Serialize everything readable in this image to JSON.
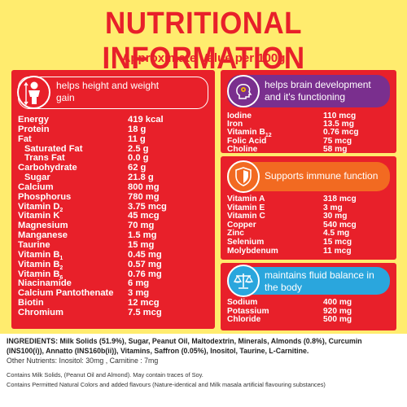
{
  "title": "NUTRITIONAL INFORMATION",
  "subtitle": "Approximate Value per 100g",
  "left_panel": {
    "header": "helps height and weight gain",
    "icon": "child-height-icon",
    "rows": [
      {
        "name": "Energy",
        "value": "419 kcal",
        "indent": false
      },
      {
        "name": "Protein",
        "value": "18 g",
        "indent": false
      },
      {
        "name": "Fat",
        "value": "11 g",
        "indent": false
      },
      {
        "name": "Saturated Fat",
        "value": "2.5 g",
        "indent": true
      },
      {
        "name": "Trans Fat",
        "value": "0.0 g",
        "indent": true
      },
      {
        "name": "Carbohydrate",
        "value": "62 g",
        "indent": false
      },
      {
        "name": "Sugar",
        "value": "21.8 g",
        "indent": true
      },
      {
        "name": "Calcium",
        "value": "800 mg",
        "indent": false
      },
      {
        "name": "Phosphorus",
        "value": "780 mg",
        "indent": false
      },
      {
        "name": "Vitamin D",
        "sub": "2",
        "value": "3.75 mcg",
        "indent": false
      },
      {
        "name": "Vitamin K",
        "value": "45 mcg",
        "indent": false
      },
      {
        "name": "Magnesium",
        "value": "70 mg",
        "indent": false
      },
      {
        "name": "Manganese",
        "value": "1.5 mg",
        "indent": false
      },
      {
        "name": "Taurine",
        "value": "15 mg",
        "indent": false
      },
      {
        "name": "Vitamin B",
        "sub": "1",
        "value": "0.45 mg",
        "indent": false
      },
      {
        "name": "Vitamin B",
        "sub": "2",
        "value": "0.57 mg",
        "indent": false
      },
      {
        "name": "Vitamin B",
        "sub": "6",
        "value": "0.76 mg",
        "indent": false
      },
      {
        "name": "Niacinamide",
        "value": "6 mg",
        "indent": false
      },
      {
        "name": "Calcium Pantothenate",
        "value": "3 mg",
        "indent": false
      },
      {
        "name": "Biotin",
        "value": "12 mcg",
        "indent": false
      },
      {
        "name": "Chromium",
        "value": "7.5 mcg",
        "indent": false
      }
    ]
  },
  "brain_panel": {
    "header": "helps brain development and it's functioning",
    "icon": "brain-head-icon",
    "rows": [
      {
        "name": "Iodine",
        "value": "110 mcg"
      },
      {
        "name": "Iron",
        "value": "13.5 mg"
      },
      {
        "name": "Vitamin B",
        "sub": "12",
        "value": "0.76 mcg"
      },
      {
        "name": "Folic Acid",
        "value": "75 mcg"
      },
      {
        "name": "Choline",
        "value": "58 mg"
      }
    ]
  },
  "immune_panel": {
    "header": "Supports immune function",
    "icon": "shield-icon",
    "rows": [
      {
        "name": "Vitamin A",
        "value": "318 mcg"
      },
      {
        "name": "Vitamin E",
        "value": "3 mg"
      },
      {
        "name": "Vitamin C",
        "value": "30 mg"
      },
      {
        "name": "Copper",
        "value": "540 mcg"
      },
      {
        "name": "Zinc",
        "value": "4.5 mg"
      },
      {
        "name": "Selenium",
        "value": "15 mcg"
      },
      {
        "name": "Molybdenum",
        "value": "11 mcg"
      }
    ]
  },
  "fluid_panel": {
    "header": "maintains fluid balance in the body",
    "icon": "balance-scale-icon",
    "rows": [
      {
        "name": "Sodium",
        "value": "400 mg"
      },
      {
        "name": "Potassium",
        "value": "920 mg"
      },
      {
        "name": "Chloride",
        "value": "500 mg"
      }
    ]
  },
  "ingredients": {
    "label": "INGREDIENTS:",
    "text": "Milk Solids (51.9%), Sugar, Peanut Oil, Maltodextrin, Minerals, Almonds (0.8%), Curcumin (INS100(i)), Annatto (INS160b(ii)), Vitamins, Saffron (0.05%), Inositol, Taurine, L-Carnitine.",
    "other": "Other Nutrients: Inositol: 30mg , Carnitine  : 7mg",
    "contains1": "Contains Milk Solids, (Peanut Oil and Almond). May contain traces of Soy.",
    "contains2": "Contains Permitted Natural Colors and added flavours (Nature-identical and Milk masala artificial flavouring substances)"
  },
  "colors": {
    "background": "#ffec6e",
    "panel": "#e8202a",
    "brain_accent": "#7a2f8e",
    "immune_accent": "#f26a21",
    "fluid_accent": "#2aa6dd"
  }
}
